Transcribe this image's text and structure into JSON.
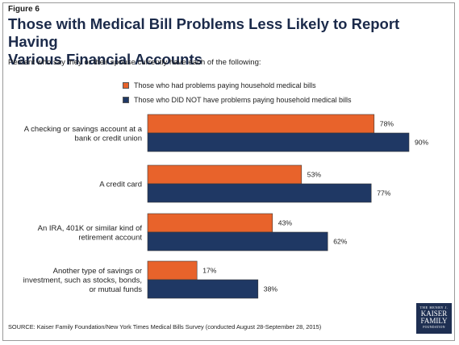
{
  "figure_label": "Figure 6",
  "title_line1": "Those with Medical Bill Problems Less Likely to Report Having",
  "title_line2": "Various Financial Accounts",
  "subtitle": "Percent who say they or their spouse currently have each of the following:",
  "source": "SOURCE: Kaiser Family Foundation/New York Times Medical Bills Survey (conducted August 28-September 28, 2015)",
  "logo": {
    "line1": "THE HENRY J.",
    "line2a": "KAISER",
    "line2b": "FAMILY",
    "line3": "FOUNDATION"
  },
  "colors": {
    "problems": "#e8632b",
    "no_problems": "#1f3864"
  },
  "chart_data": {
    "type": "bar",
    "orientation": "horizontal",
    "categories": [
      [
        "A checking or savings account at a",
        "bank or credit union"
      ],
      [
        "A credit card"
      ],
      [
        "An IRA, 401K or similar kind of",
        "retirement account"
      ],
      [
        "Another type of savings or",
        "investment, such as stocks, bonds,",
        "or mutual funds"
      ]
    ],
    "series": [
      {
        "name": "Those who had problems paying household medical bills",
        "values": [
          78,
          53,
          43,
          17
        ],
        "labels": [
          "78%",
          "53%",
          "43%",
          "17%"
        ]
      },
      {
        "name": "Those who DID NOT have problems paying household medical bills",
        "values": [
          90,
          77,
          62,
          38
        ],
        "labels": [
          "90%",
          "77%",
          "62%",
          "38%"
        ]
      }
    ],
    "xlim": [
      0,
      100
    ],
    "grid": false,
    "legend_position": "top"
  }
}
